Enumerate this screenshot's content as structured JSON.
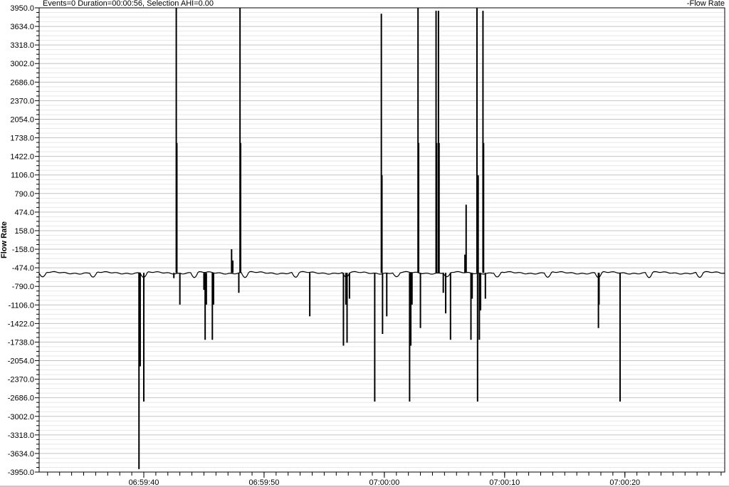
{
  "header": {
    "title": "Events=0 Duration=00:00:56, Selection AHI=0.00"
  },
  "chart_data": {
    "type": "line",
    "title": "",
    "legend": {
      "entries": [
        "Flow Rate"
      ],
      "placement": "top-right"
    },
    "ylabel": "Flow Rate",
    "xlabel": "",
    "ylim": [
      -3950,
      3950
    ],
    "yticks": [
      "3950.0",
      "3634.0",
      "3318.0",
      "3002.0",
      "2686.0",
      "2370.0",
      "2054.0",
      "1738.0",
      "1422.0",
      "1106.0",
      "790.0",
      "474.0",
      "158.0",
      "-158.0",
      "-474.0",
      "-790.0",
      "-1106.0",
      "-1422.0",
      "-1738.0",
      "-2054.0",
      "-2370.0",
      "-2686.0",
      "-3002.0",
      "-3318.0",
      "-3634.0",
      "-3950.0"
    ],
    "xlim": [
      "06:59:31.3",
      "07:00:28.3"
    ],
    "xticks": [
      "06:59:40",
      "06:59:50",
      "07:00:00",
      "07:00:10",
      "07:00:20"
    ],
    "grid": true,
    "color": "#000000",
    "baseline": -560,
    "series": [
      {
        "name": "Flow Rate",
        "spikes": [
          {
            "t": "06:59:39.6",
            "v": -3900
          },
          {
            "t": "06:59:39.7",
            "v": -2150
          },
          {
            "t": "06:59:40.0",
            "v": -2750
          },
          {
            "t": "06:59:42.5",
            "v": -650
          },
          {
            "t": "06:59:42.7",
            "v": 3950
          },
          {
            "t": "06:59:42.75",
            "v": 1650
          },
          {
            "t": "06:59:43.0",
            "v": -1100
          },
          {
            "t": "06:59:45.0",
            "v": -850
          },
          {
            "t": "06:59:45.1",
            "v": -1700
          },
          {
            "t": "06:59:45.2",
            "v": -1100
          },
          {
            "t": "06:59:45.7",
            "v": -1700
          },
          {
            "t": "06:59:45.8",
            "v": -1100
          },
          {
            "t": "06:59:47.3",
            "v": -158
          },
          {
            "t": "06:59:47.4",
            "v": -350
          },
          {
            "t": "06:59:47.9",
            "v": -900
          },
          {
            "t": "06:59:48.0",
            "v": 3950
          },
          {
            "t": "06:59:48.05",
            "v": 1650
          },
          {
            "t": "06:59:53.8",
            "v": -1300
          },
          {
            "t": "06:59:56.6",
            "v": -1800
          },
          {
            "t": "06:59:56.8",
            "v": -1100
          },
          {
            "t": "06:59:56.9",
            "v": -1750
          },
          {
            "t": "06:59:57.1",
            "v": -1000
          },
          {
            "t": "06:59:59.2",
            "v": -2750
          },
          {
            "t": "06:59:59.75",
            "v": 3850
          },
          {
            "t": "06:59:59.8",
            "v": 1100
          },
          {
            "t": "06:59:59.85",
            "v": -1600
          },
          {
            "t": "07:00:00.2",
            "v": -1300
          },
          {
            "t": "07:00:02.1",
            "v": -2750
          },
          {
            "t": "07:00:02.2",
            "v": -1800
          },
          {
            "t": "07:00:02.3",
            "v": -1100
          },
          {
            "t": "07:00:02.8",
            "v": 3950
          },
          {
            "t": "07:00:02.85",
            "v": 1650
          },
          {
            "t": "07:00:03.0",
            "v": -1500
          },
          {
            "t": "07:00:04.3",
            "v": 3900
          },
          {
            "t": "07:00:04.35",
            "v": 1650
          },
          {
            "t": "07:00:04.5",
            "v": 3900
          },
          {
            "t": "07:00:04.55",
            "v": 1650
          },
          {
            "t": "07:00:04.9",
            "v": -900
          },
          {
            "t": "07:00:05.1",
            "v": -1250
          },
          {
            "t": "07:00:05.5",
            "v": -1700
          },
          {
            "t": "07:00:06.8",
            "v": 600
          },
          {
            "t": "07:00:06.7",
            "v": -250
          },
          {
            "t": "07:00:07.2",
            "v": -1700
          },
          {
            "t": "07:00:07.3",
            "v": -1000
          },
          {
            "t": "07:00:07.7",
            "v": 3950
          },
          {
            "t": "07:00:07.75",
            "v": -2750
          },
          {
            "t": "07:00:07.8",
            "v": 1100
          },
          {
            "t": "07:00:07.9",
            "v": -1700
          },
          {
            "t": "07:00:08.0",
            "v": -1200
          },
          {
            "t": "07:00:08.2",
            "v": 3900
          },
          {
            "t": "07:00:08.25",
            "v": 1650
          },
          {
            "t": "07:00:08.4",
            "v": -1000
          },
          {
            "t": "07:00:17.8",
            "v": -1500
          },
          {
            "t": "07:00:17.85",
            "v": -1100
          },
          {
            "t": "07:00:19.6",
            "v": -2750
          }
        ]
      }
    ]
  }
}
